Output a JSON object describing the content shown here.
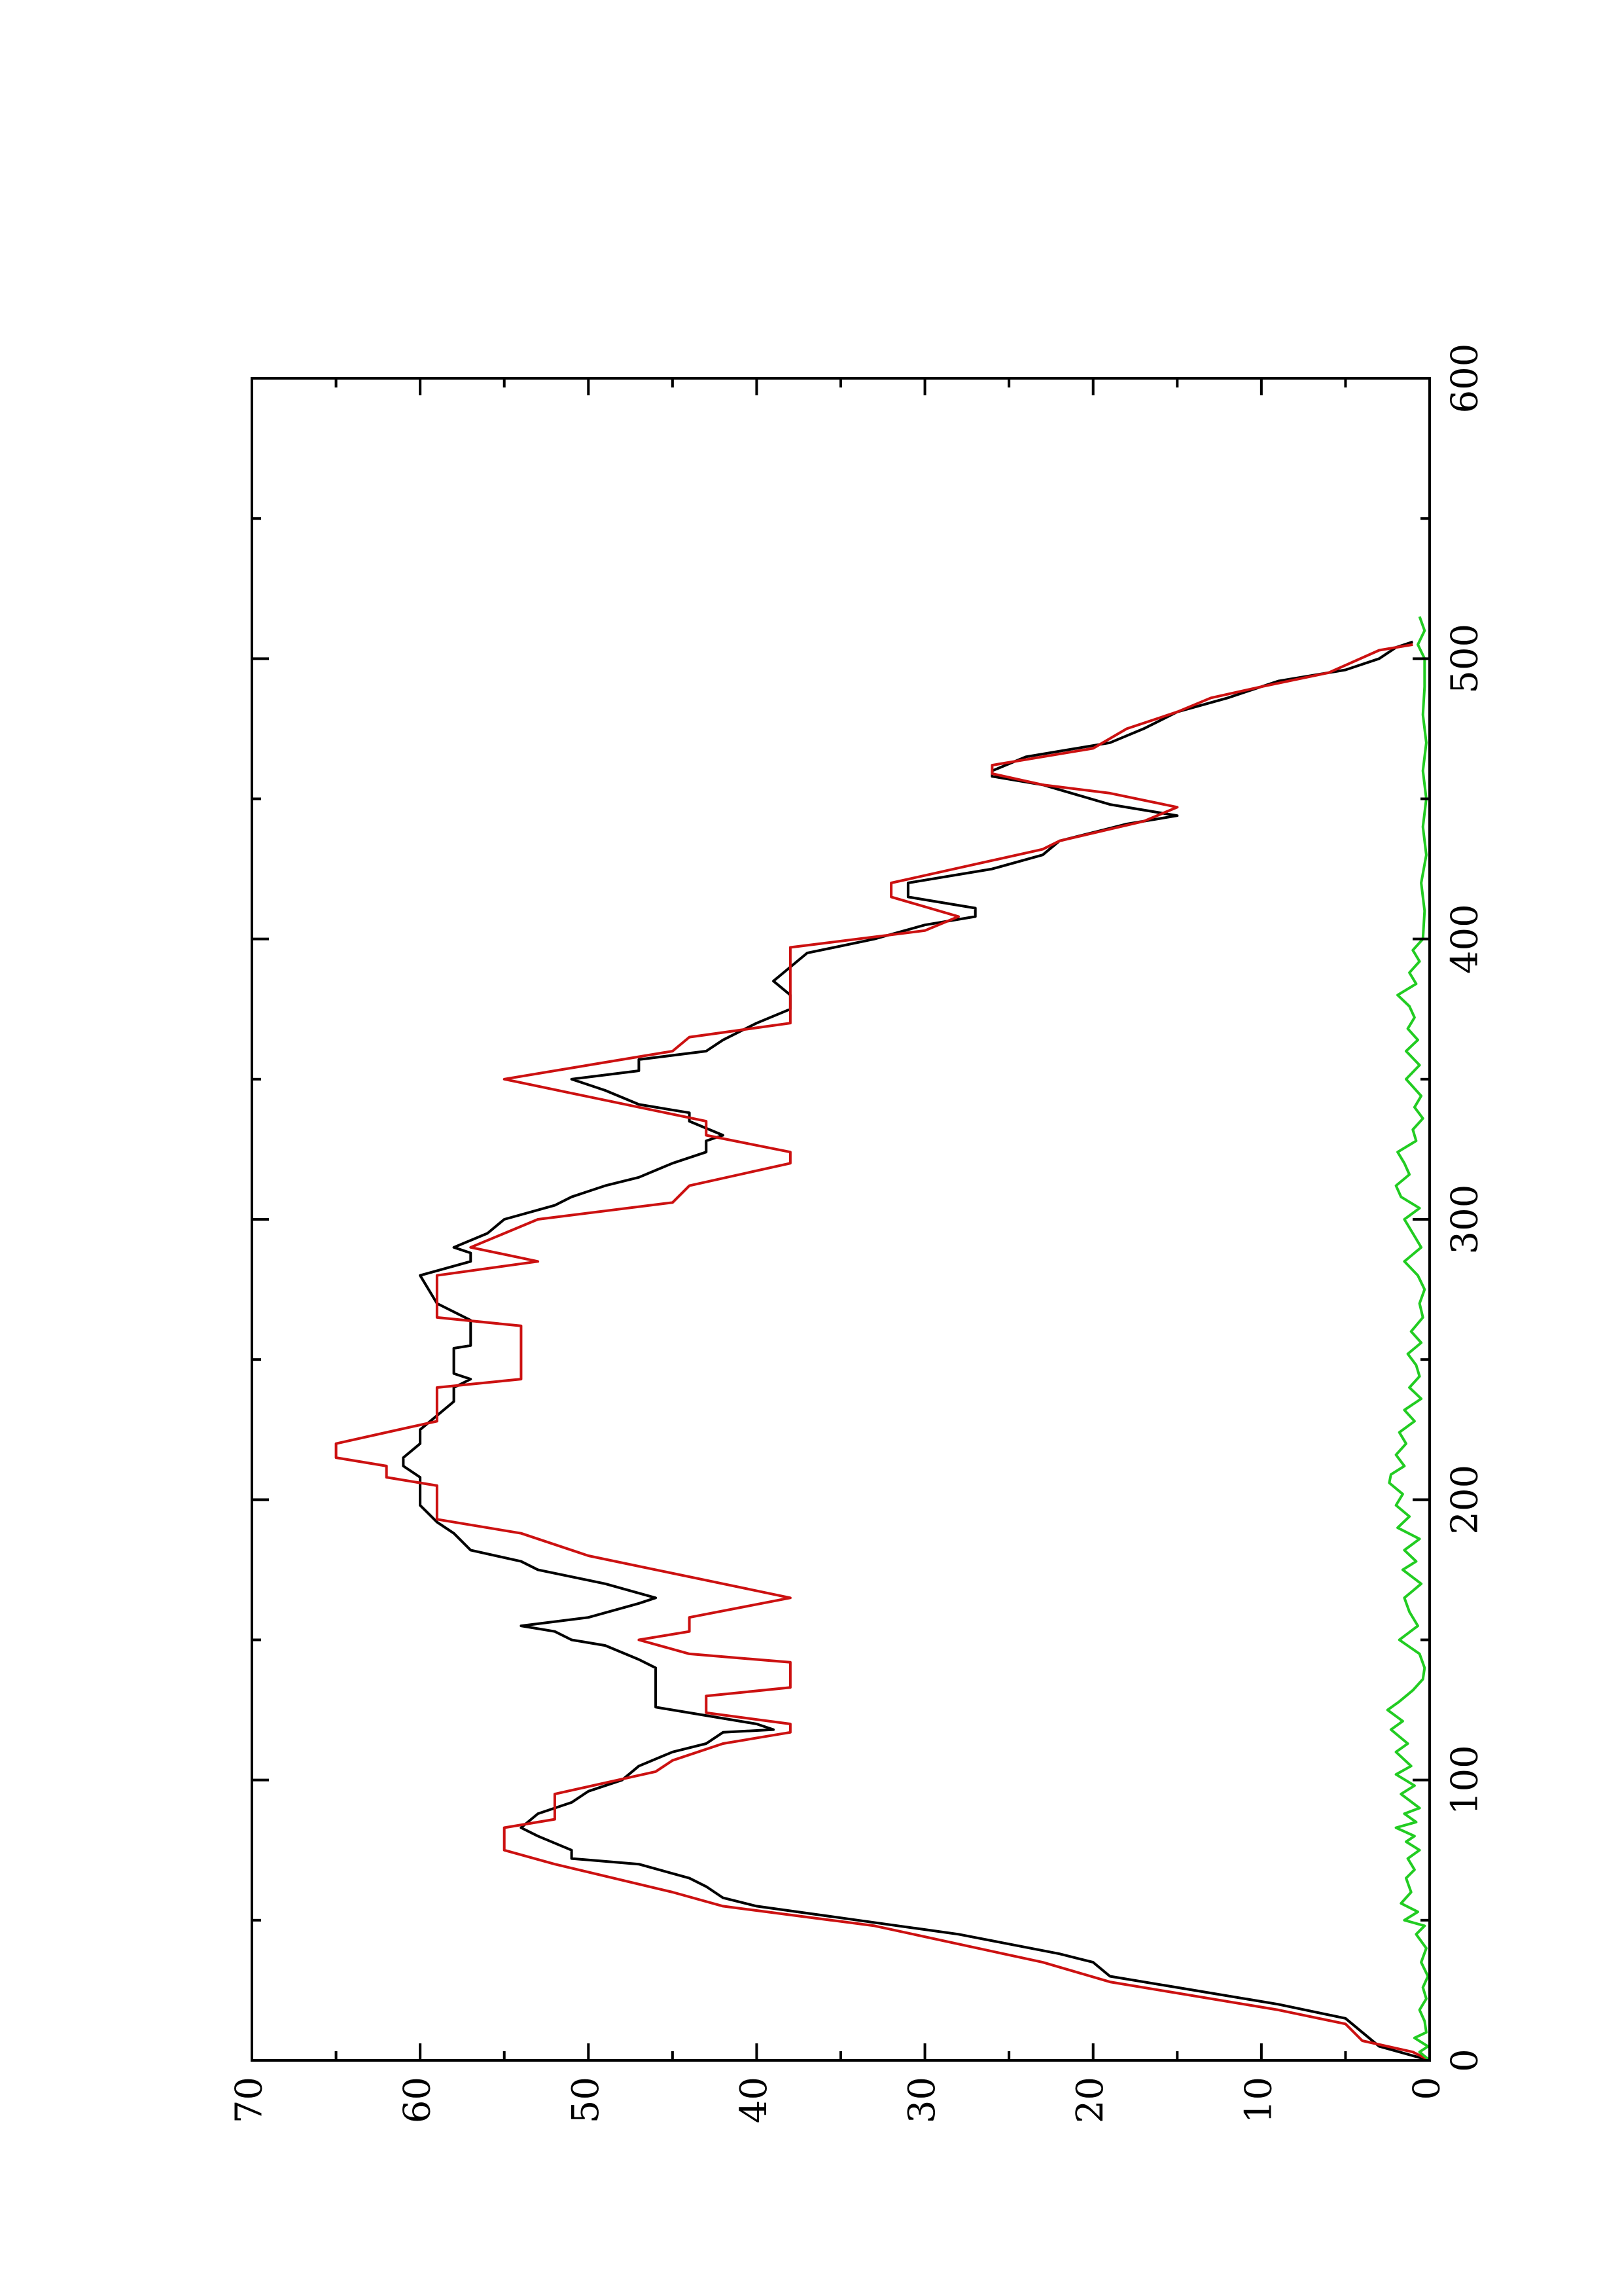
{
  "chart_data": {
    "type": "line",
    "title": "",
    "xlabel": "",
    "ylabel": "",
    "orientation": "rotated-90-ccw",
    "xlim": [
      0,
      600
    ],
    "ylim": [
      0,
      70
    ],
    "x_ticks": [
      0,
      100,
      200,
      300,
      400,
      500,
      600
    ],
    "y_ticks": [
      0,
      10,
      20,
      30,
      40,
      50,
      60,
      70
    ],
    "x_tick_labels": [
      "0",
      "100",
      "200",
      "300",
      "400",
      "500",
      "600"
    ],
    "y_tick_labels": [
      "0",
      "10",
      "20",
      "30",
      "40",
      "50",
      "60",
      "70"
    ],
    "grid": false,
    "legend": "none",
    "colors": {
      "black": "#000000",
      "red": "#cc1111",
      "green": "#22cc22"
    },
    "series": [
      {
        "color": "#000000",
        "points": [
          [
            0,
            0
          ],
          [
            5,
            3
          ],
          [
            10,
            4
          ],
          [
            15,
            5
          ],
          [
            20,
            9
          ],
          [
            25,
            14
          ],
          [
            30,
            19
          ],
          [
            35,
            20
          ],
          [
            38,
            22
          ],
          [
            45,
            28
          ],
          [
            50,
            34
          ],
          [
            55,
            40
          ],
          [
            58,
            42
          ],
          [
            62,
            43
          ],
          [
            65,
            44
          ],
          [
            70,
            47
          ],
          [
            72,
            51
          ],
          [
            75,
            51
          ],
          [
            80,
            53
          ],
          [
            83,
            54
          ],
          [
            88,
            53
          ],
          [
            92,
            51
          ],
          [
            96,
            50
          ],
          [
            100,
            48
          ],
          [
            105,
            47
          ],
          [
            110,
            45
          ],
          [
            113,
            43
          ],
          [
            117,
            42
          ],
          [
            118,
            39
          ],
          [
            120,
            40
          ],
          [
            124,
            44
          ],
          [
            126,
            46
          ],
          [
            130,
            46
          ],
          [
            135,
            46
          ],
          [
            140,
            46
          ],
          [
            143,
            47
          ],
          [
            148,
            49
          ],
          [
            150,
            51
          ],
          [
            153,
            52
          ],
          [
            155,
            54
          ],
          [
            158,
            50
          ],
          [
            163,
            47
          ],
          [
            165,
            46
          ],
          [
            170,
            49
          ],
          [
            175,
            53
          ],
          [
            178,
            54
          ],
          [
            182,
            57
          ],
          [
            188,
            58
          ],
          [
            192,
            59
          ],
          [
            198,
            60
          ],
          [
            205,
            60
          ],
          [
            208,
            60
          ],
          [
            212,
            61
          ],
          [
            215,
            61
          ],
          [
            220,
            60
          ],
          [
            225,
            60
          ],
          [
            230,
            59
          ],
          [
            235,
            58
          ],
          [
            240,
            58
          ],
          [
            243,
            57
          ],
          [
            245,
            58
          ],
          [
            250,
            58
          ],
          [
            254,
            58
          ],
          [
            255,
            57
          ],
          [
            260,
            57
          ],
          [
            264,
            57
          ],
          [
            270,
            59
          ],
          [
            280,
            60
          ],
          [
            285,
            57
          ],
          [
            288,
            57
          ],
          [
            290,
            58
          ],
          [
            295,
            56
          ],
          [
            300,
            55
          ],
          [
            305,
            52
          ],
          [
            308,
            51
          ],
          [
            312,
            49
          ],
          [
            315,
            47
          ],
          [
            320,
            45
          ],
          [
            324,
            43
          ],
          [
            328,
            43
          ],
          [
            330,
            42
          ],
          [
            335,
            44
          ],
          [
            338,
            44
          ],
          [
            341,
            47
          ],
          [
            346,
            49
          ],
          [
            350,
            51
          ],
          [
            353,
            47
          ],
          [
            357,
            47
          ],
          [
            360,
            43
          ],
          [
            364,
            42
          ],
          [
            370,
            40
          ],
          [
            375,
            38
          ],
          [
            380,
            38
          ],
          [
            385,
            39
          ],
          [
            390,
            38
          ],
          [
            395,
            37
          ],
          [
            400,
            33
          ],
          [
            405,
            30
          ],
          [
            408,
            27
          ],
          [
            411,
            27
          ],
          [
            415,
            31
          ],
          [
            420,
            31
          ],
          [
            425,
            26
          ],
          [
            430,
            23
          ],
          [
            435,
            22
          ],
          [
            438,
            20
          ],
          [
            441,
            18
          ],
          [
            444,
            15
          ],
          [
            448,
            19
          ],
          [
            455,
            23
          ],
          [
            458,
            26
          ],
          [
            460,
            26
          ],
          [
            465,
            24
          ],
          [
            470,
            19
          ],
          [
            475,
            17
          ],
          [
            481,
            15
          ],
          [
            486,
            12
          ],
          [
            492,
            9
          ],
          [
            496,
            5
          ],
          [
            500,
            3
          ],
          [
            504,
            2
          ],
          [
            506,
            1
          ]
        ]
      },
      {
        "color": "#cc1111",
        "points": [
          [
            0,
            0
          ],
          [
            3,
            1
          ],
          [
            7,
            4
          ],
          [
            13,
            5
          ],
          [
            18,
            9
          ],
          [
            28,
            19
          ],
          [
            35,
            23
          ],
          [
            48,
            33
          ],
          [
            55,
            42
          ],
          [
            60,
            45
          ],
          [
            70,
            52
          ],
          [
            75,
            55
          ],
          [
            83,
            55
          ],
          [
            86,
            52
          ],
          [
            95,
            52
          ],
          [
            103,
            46
          ],
          [
            107,
            45
          ],
          [
            113,
            42
          ],
          [
            117,
            38
          ],
          [
            120,
            38
          ],
          [
            124,
            43
          ],
          [
            130,
            43
          ],
          [
            133,
            38
          ],
          [
            142,
            38
          ],
          [
            145,
            44
          ],
          [
            150,
            47
          ],
          [
            153,
            44
          ],
          [
            158,
            44
          ],
          [
            165,
            38
          ],
          [
            170,
            42
          ],
          [
            175,
            46
          ],
          [
            180,
            50
          ],
          [
            188,
            54
          ],
          [
            193,
            59
          ],
          [
            205,
            59
          ],
          [
            208,
            62
          ],
          [
            212,
            62
          ],
          [
            215,
            65
          ],
          [
            220,
            65
          ],
          [
            224,
            62
          ],
          [
            228,
            59
          ],
          [
            240,
            59
          ],
          [
            243,
            54
          ],
          [
            262,
            54
          ],
          [
            265,
            59
          ],
          [
            280,
            59
          ],
          [
            285,
            53
          ],
          [
            290,
            57
          ],
          [
            300,
            53
          ],
          [
            306,
            45
          ],
          [
            312,
            44
          ],
          [
            320,
            38
          ],
          [
            324,
            38
          ],
          [
            330,
            43
          ],
          [
            335,
            43
          ],
          [
            340,
            47
          ],
          [
            345,
            51
          ],
          [
            350,
            55
          ],
          [
            355,
            50
          ],
          [
            360,
            45
          ],
          [
            365,
            44
          ],
          [
            370,
            38
          ],
          [
            397,
            38
          ],
          [
            403,
            30
          ],
          [
            408,
            28
          ],
          [
            415,
            32
          ],
          [
            420,
            32
          ],
          [
            428,
            26
          ],
          [
            432,
            23
          ],
          [
            435,
            22
          ],
          [
            442,
            17
          ],
          [
            447,
            15
          ],
          [
            452,
            19
          ],
          [
            455,
            23
          ],
          [
            459,
            26
          ],
          [
            462,
            26
          ],
          [
            468,
            20
          ],
          [
            475,
            18
          ],
          [
            481,
            15
          ],
          [
            486,
            13
          ],
          [
            490,
            10
          ],
          [
            495,
            6
          ],
          [
            503,
            3
          ],
          [
            505,
            1
          ]
        ]
      },
      {
        "color": "#22cc22",
        "points": [
          [
            0,
            0
          ],
          [
            3,
            0.6
          ],
          [
            5,
            0.1
          ],
          [
            8,
            0.9
          ],
          [
            10,
            0.2
          ],
          [
            14,
            0.3
          ],
          [
            18,
            0.6
          ],
          [
            22,
            0.2
          ],
          [
            26,
            0.4
          ],
          [
            30,
            0.1
          ],
          [
            35,
            0.5
          ],
          [
            40,
            0.2
          ],
          [
            45,
            0.8
          ],
          [
            48,
            0.3
          ],
          [
            50,
            1.5
          ],
          [
            53,
            0.7
          ],
          [
            56,
            1.7
          ],
          [
            60,
            1.1
          ],
          [
            65,
            1.4
          ],
          [
            68,
            0.9
          ],
          [
            72,
            1.3
          ],
          [
            75,
            0.6
          ],
          [
            78,
            1.4
          ],
          [
            80,
            0.9
          ],
          [
            83,
            2.0
          ],
          [
            85,
            0.8
          ],
          [
            88,
            1.5
          ],
          [
            90,
            0.6
          ],
          [
            95,
            1.7
          ],
          [
            98,
            0.9
          ],
          [
            102,
            2.0
          ],
          [
            105,
            1.1
          ],
          [
            110,
            2.0
          ],
          [
            113,
            1.3
          ],
          [
            118,
            2.3
          ],
          [
            121,
            1.6
          ],
          [
            125,
            2.5
          ],
          [
            128,
            1.8
          ],
          [
            132,
            1.0
          ],
          [
            136,
            0.4
          ],
          [
            140,
            0.3
          ],
          [
            145,
            0.6
          ],
          [
            150,
            1.8
          ],
          [
            155,
            0.7
          ],
          [
            160,
            1.2
          ],
          [
            165,
            1.5
          ],
          [
            170,
            0.5
          ],
          [
            175,
            1.6
          ],
          [
            178,
            0.8
          ],
          [
            182,
            1.5
          ],
          [
            186,
            0.6
          ],
          [
            190,
            1.9
          ],
          [
            194,
            1.2
          ],
          [
            198,
            2.0
          ],
          [
            202,
            1.6
          ],
          [
            206,
            2.4
          ],
          [
            209,
            2.3
          ],
          [
            212,
            1.5
          ],
          [
            216,
            2.0
          ],
          [
            220,
            1.4
          ],
          [
            224,
            1.8
          ],
          [
            228,
            0.9
          ],
          [
            232,
            1.5
          ],
          [
            236,
            0.5
          ],
          [
            240,
            1.2
          ],
          [
            244,
            0.6
          ],
          [
            248,
            0.8
          ],
          [
            252,
            1.3
          ],
          [
            256,
            0.5
          ],
          [
            260,
            1.1
          ],
          [
            265,
            0.4
          ],
          [
            270,
            0.6
          ],
          [
            275,
            0.3
          ],
          [
            280,
            0.7
          ],
          [
            285,
            1.5
          ],
          [
            290,
            0.5
          ],
          [
            295,
            1.0
          ],
          [
            300,
            1.5
          ],
          [
            304,
            0.6
          ],
          [
            308,
            1.7
          ],
          [
            312,
            2.0
          ],
          [
            316,
            1.2
          ],
          [
            320,
            1.5
          ],
          [
            324,
            1.9
          ],
          [
            328,
            0.8
          ],
          [
            332,
            1.0
          ],
          [
            336,
            0.4
          ],
          [
            340,
            0.9
          ],
          [
            344,
            0.5
          ],
          [
            350,
            1.4
          ],
          [
            355,
            0.6
          ],
          [
            360,
            1.4
          ],
          [
            364,
            0.7
          ],
          [
            368,
            1.3
          ],
          [
            372,
            0.9
          ],
          [
            376,
            1.2
          ],
          [
            380,
            1.9
          ],
          [
            384,
            0.8
          ],
          [
            388,
            1.2
          ],
          [
            392,
            0.6
          ],
          [
            396,
            1.0
          ],
          [
            400,
            0.4
          ],
          [
            410,
            0.3
          ],
          [
            420,
            0.5
          ],
          [
            430,
            0.2
          ],
          [
            440,
            0.4
          ],
          [
            450,
            0.2
          ],
          [
            460,
            0.4
          ],
          [
            470,
            0.2
          ],
          [
            480,
            0.4
          ],
          [
            490,
            0.3
          ],
          [
            500,
            0.3
          ],
          [
            505,
            0.7
          ],
          [
            510,
            0.3
          ],
          [
            515,
            0.6
          ]
        ]
      }
    ]
  }
}
